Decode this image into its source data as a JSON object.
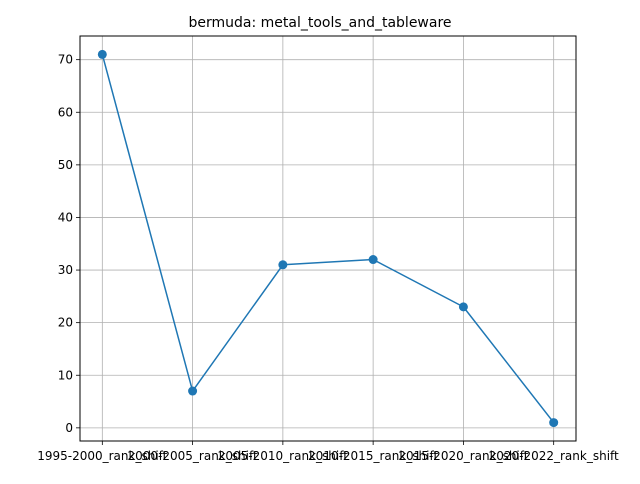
{
  "chart_data": {
    "type": "line",
    "title": "bermuda: metal_tools_and_tableware",
    "xlabel": "",
    "ylabel": "",
    "categories": [
      "1995-2000_rank_shift",
      "2000-2005_rank_shift",
      "2005-2010_rank_shift",
      "2010-2015_rank_shift",
      "2015-2020_rank_shift",
      "2020-2022_rank_shift"
    ],
    "series": [
      {
        "values": [
          71,
          7,
          31,
          32,
          23,
          1
        ],
        "color": "#1f77b4"
      }
    ],
    "ylim": [
      -2.5,
      74.5
    ],
    "yticks": [
      0,
      10,
      20,
      30,
      40,
      50,
      60,
      70
    ],
    "grid": true,
    "marker": "circle"
  }
}
